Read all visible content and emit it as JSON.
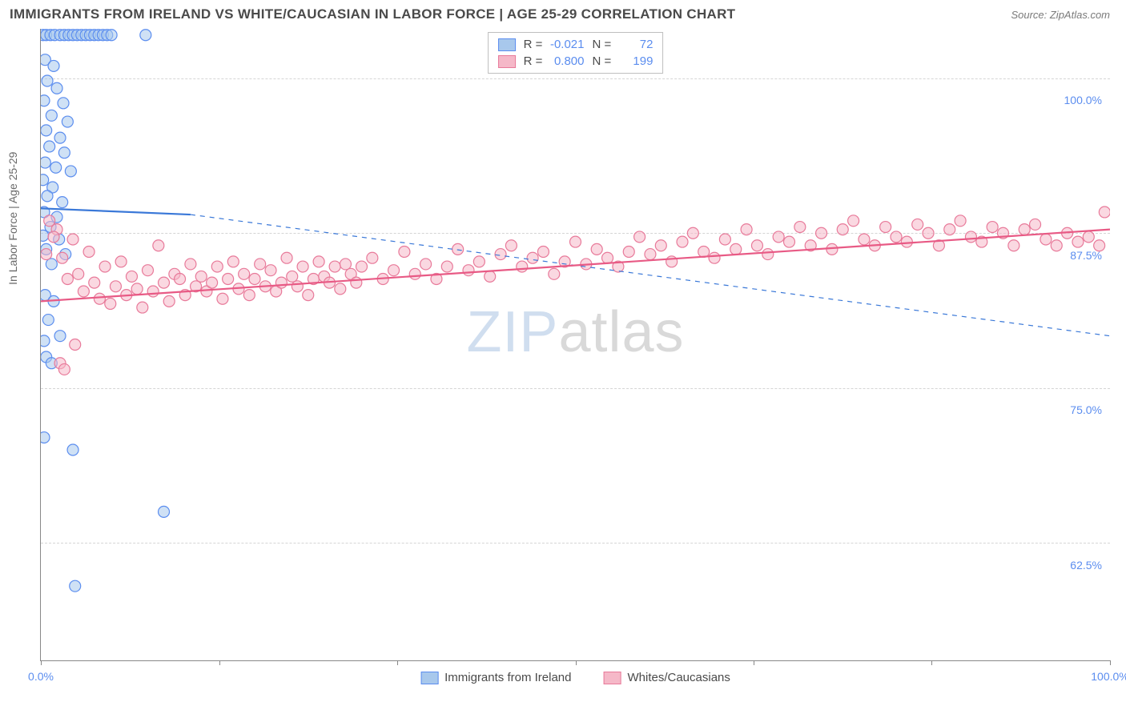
{
  "title": "IMMIGRANTS FROM IRELAND VS WHITE/CAUCASIAN IN LABOR FORCE | AGE 25-29 CORRELATION CHART",
  "source": "Source: ZipAtlas.com",
  "ylabel": "In Labor Force | Age 25-29",
  "watermark": {
    "part1": "ZIP",
    "part2": "atlas"
  },
  "chart": {
    "type": "scatter-with-regression",
    "xlim": [
      0,
      100
    ],
    "ylim": [
      53,
      104
    ],
    "xtick_positions": [
      0,
      16.67,
      33.33,
      50,
      66.67,
      83.33,
      100
    ],
    "xtick_labels": {
      "first": "0.0%",
      "last": "100.0%"
    },
    "ytick_positions": [
      62.5,
      75.0,
      87.5,
      100.0
    ],
    "ytick_labels": [
      "62.5%",
      "75.0%",
      "87.5%",
      "100.0%"
    ],
    "grid_color": "#d5d5d5",
    "background_color": "#ffffff",
    "axis_color": "#888888",
    "marker_radius": 7,
    "marker_stroke_width": 1.2,
    "series": [
      {
        "name": "Immigrants from Ireland",
        "color_fill": "#a8c8ec",
        "color_stroke": "#5b8def",
        "fill_opacity": 0.55,
        "R": "-0.021",
        "N": "72",
        "regression": {
          "solid": {
            "x1": 0,
            "y1": 89.5,
            "x2": 14,
            "y2": 89.0
          },
          "dashed": {
            "x1": 14,
            "y1": 89.0,
            "x2": 100,
            "y2": 79.2
          },
          "line_color": "#3a78d8",
          "line_width_solid": 2.2,
          "line_width_dashed": 1.2
        },
        "points": [
          [
            0.2,
            103.5
          ],
          [
            0.5,
            103.5
          ],
          [
            0.9,
            103.5
          ],
          [
            1.3,
            103.5
          ],
          [
            1.8,
            103.5
          ],
          [
            2.2,
            103.5
          ],
          [
            2.6,
            103.5
          ],
          [
            3.0,
            103.5
          ],
          [
            3.4,
            103.5
          ],
          [
            3.8,
            103.5
          ],
          [
            4.2,
            103.5
          ],
          [
            4.6,
            103.5
          ],
          [
            5.0,
            103.5
          ],
          [
            5.4,
            103.5
          ],
          [
            5.8,
            103.5
          ],
          [
            6.2,
            103.5
          ],
          [
            6.6,
            103.5
          ],
          [
            9.8,
            103.5
          ],
          [
            0.4,
            101.5
          ],
          [
            1.2,
            101.0
          ],
          [
            0.6,
            99.8
          ],
          [
            1.5,
            99.2
          ],
          [
            0.3,
            98.2
          ],
          [
            2.1,
            98.0
          ],
          [
            1.0,
            97.0
          ],
          [
            2.5,
            96.5
          ],
          [
            0.5,
            95.8
          ],
          [
            1.8,
            95.2
          ],
          [
            0.8,
            94.5
          ],
          [
            2.2,
            94.0
          ],
          [
            0.4,
            93.2
          ],
          [
            1.4,
            92.8
          ],
          [
            2.8,
            92.5
          ],
          [
            0.2,
            91.8
          ],
          [
            1.1,
            91.2
          ],
          [
            0.6,
            90.5
          ],
          [
            2.0,
            90.0
          ],
          [
            0.3,
            89.2
          ],
          [
            1.5,
            88.8
          ],
          [
            0.9,
            88.0
          ],
          [
            0.2,
            87.3
          ],
          [
            1.7,
            87.0
          ],
          [
            0.5,
            86.2
          ],
          [
            2.3,
            85.8
          ],
          [
            1.0,
            85.0
          ],
          [
            0.4,
            82.5
          ],
          [
            1.2,
            82.0
          ],
          [
            0.7,
            80.5
          ],
          [
            0.3,
            78.8
          ],
          [
            1.8,
            79.2
          ],
          [
            0.5,
            77.5
          ],
          [
            1.0,
            77.0
          ],
          [
            0.3,
            71.0
          ],
          [
            3.0,
            70.0
          ],
          [
            11.5,
            65.0
          ],
          [
            3.2,
            59.0
          ]
        ]
      },
      {
        "name": "Whites/Caucasians",
        "color_fill": "#f5b8c8",
        "color_stroke": "#e87a9a",
        "fill_opacity": 0.55,
        "R": "0.800",
        "N": "199",
        "regression": {
          "solid": {
            "x1": 0,
            "y1": 82.0,
            "x2": 100,
            "y2": 87.8
          },
          "line_color": "#e85a85",
          "line_width_solid": 2.2
        },
        "points": [
          [
            1.5,
            87.8
          ],
          [
            2.0,
            85.5
          ],
          [
            2.5,
            83.8
          ],
          [
            3.0,
            87.0
          ],
          [
            3.2,
            78.5
          ],
          [
            3.5,
            84.2
          ],
          [
            4.0,
            82.8
          ],
          [
            4.5,
            86.0
          ],
          [
            5.0,
            83.5
          ],
          [
            5.5,
            82.2
          ],
          [
            6.0,
            84.8
          ],
          [
            6.5,
            81.8
          ],
          [
            7.0,
            83.2
          ],
          [
            7.5,
            85.2
          ],
          [
            8.0,
            82.5
          ],
          [
            8.5,
            84.0
          ],
          [
            9.0,
            83.0
          ],
          [
            9.5,
            81.5
          ],
          [
            10.0,
            84.5
          ],
          [
            10.5,
            82.8
          ],
          [
            11.0,
            86.5
          ],
          [
            11.5,
            83.5
          ],
          [
            12.0,
            82.0
          ],
          [
            12.5,
            84.2
          ],
          [
            13.0,
            83.8
          ],
          [
            13.5,
            82.5
          ],
          [
            14.0,
            85.0
          ],
          [
            14.5,
            83.2
          ],
          [
            15.0,
            84.0
          ],
          [
            15.5,
            82.8
          ],
          [
            16.0,
            83.5
          ],
          [
            16.5,
            84.8
          ],
          [
            17.0,
            82.2
          ],
          [
            17.5,
            83.8
          ],
          [
            18.0,
            85.2
          ],
          [
            18.5,
            83.0
          ],
          [
            19.0,
            84.2
          ],
          [
            19.5,
            82.5
          ],
          [
            20.0,
            83.8
          ],
          [
            20.5,
            85.0
          ],
          [
            21.0,
            83.2
          ],
          [
            21.5,
            84.5
          ],
          [
            22.0,
            82.8
          ],
          [
            22.5,
            83.5
          ],
          [
            23.0,
            85.5
          ],
          [
            23.5,
            84.0
          ],
          [
            24.0,
            83.2
          ],
          [
            24.5,
            84.8
          ],
          [
            25.0,
            82.5
          ],
          [
            25.5,
            83.8
          ],
          [
            26.0,
            85.2
          ],
          [
            26.5,
            84.0
          ],
          [
            27.0,
            83.5
          ],
          [
            27.5,
            84.8
          ],
          [
            28.0,
            83.0
          ],
          [
            28.5,
            85.0
          ],
          [
            29.0,
            84.2
          ],
          [
            29.5,
            83.5
          ],
          [
            30.0,
            84.8
          ],
          [
            31.0,
            85.5
          ],
          [
            32.0,
            83.8
          ],
          [
            33.0,
            84.5
          ],
          [
            34.0,
            86.0
          ],
          [
            35.0,
            84.2
          ],
          [
            36.0,
            85.0
          ],
          [
            37.0,
            83.8
          ],
          [
            38.0,
            84.8
          ],
          [
            39.0,
            86.2
          ],
          [
            40.0,
            84.5
          ],
          [
            41.0,
            85.2
          ],
          [
            42.0,
            84.0
          ],
          [
            43.0,
            85.8
          ],
          [
            44.0,
            86.5
          ],
          [
            45.0,
            84.8
          ],
          [
            46.0,
            85.5
          ],
          [
            47.0,
            86.0
          ],
          [
            48.0,
            84.2
          ],
          [
            49.0,
            85.2
          ],
          [
            50.0,
            86.8
          ],
          [
            51.0,
            85.0
          ],
          [
            52.0,
            86.2
          ],
          [
            53.0,
            85.5
          ],
          [
            54.0,
            84.8
          ],
          [
            55.0,
            86.0
          ],
          [
            56.0,
            87.2
          ],
          [
            57.0,
            85.8
          ],
          [
            58.0,
            86.5
          ],
          [
            59.0,
            85.2
          ],
          [
            60.0,
            86.8
          ],
          [
            61.0,
            87.5
          ],
          [
            62.0,
            86.0
          ],
          [
            63.0,
            85.5
          ],
          [
            64.0,
            87.0
          ],
          [
            65.0,
            86.2
          ],
          [
            66.0,
            87.8
          ],
          [
            67.0,
            86.5
          ],
          [
            68.0,
            85.8
          ],
          [
            69.0,
            87.2
          ],
          [
            70.0,
            86.8
          ],
          [
            71.0,
            88.0
          ],
          [
            72.0,
            86.5
          ],
          [
            73.0,
            87.5
          ],
          [
            74.0,
            86.2
          ],
          [
            75.0,
            87.8
          ],
          [
            76.0,
            88.5
          ],
          [
            77.0,
            87.0
          ],
          [
            78.0,
            86.5
          ],
          [
            79.0,
            88.0
          ],
          [
            80.0,
            87.2
          ],
          [
            81.0,
            86.8
          ],
          [
            82.0,
            88.2
          ],
          [
            83.0,
            87.5
          ],
          [
            84.0,
            86.5
          ],
          [
            85.0,
            87.8
          ],
          [
            86.0,
            88.5
          ],
          [
            87.0,
            87.2
          ],
          [
            88.0,
            86.8
          ],
          [
            89.0,
            88.0
          ],
          [
            90.0,
            87.5
          ],
          [
            91.0,
            86.5
          ],
          [
            92.0,
            87.8
          ],
          [
            93.0,
            88.2
          ],
          [
            94.0,
            87.0
          ],
          [
            95.0,
            86.5
          ],
          [
            96.0,
            87.5
          ],
          [
            97.0,
            86.8
          ],
          [
            98.0,
            87.2
          ],
          [
            99.0,
            86.5
          ],
          [
            99.5,
            89.2
          ],
          [
            1.8,
            77.0
          ],
          [
            2.2,
            76.5
          ],
          [
            0.8,
            88.5
          ],
          [
            1.2,
            87.2
          ],
          [
            0.5,
            85.8
          ]
        ]
      }
    ]
  },
  "legend_top": {
    "rows": [
      {
        "swatch_fill": "#a8c8ec",
        "swatch_stroke": "#5b8def",
        "R_label": "R =",
        "R_val": "-0.021",
        "N_label": "N =",
        "N_val": "72"
      },
      {
        "swatch_fill": "#f5b8c8",
        "swatch_stroke": "#e87a9a",
        "R_label": "R =",
        "R_val": "0.800",
        "N_label": "N =",
        "N_val": "199"
      }
    ]
  },
  "legend_bottom": {
    "items": [
      {
        "swatch_fill": "#a8c8ec",
        "swatch_stroke": "#5b8def",
        "label": "Immigrants from Ireland"
      },
      {
        "swatch_fill": "#f5b8c8",
        "swatch_stroke": "#e87a9a",
        "label": "Whites/Caucasians"
      }
    ]
  }
}
